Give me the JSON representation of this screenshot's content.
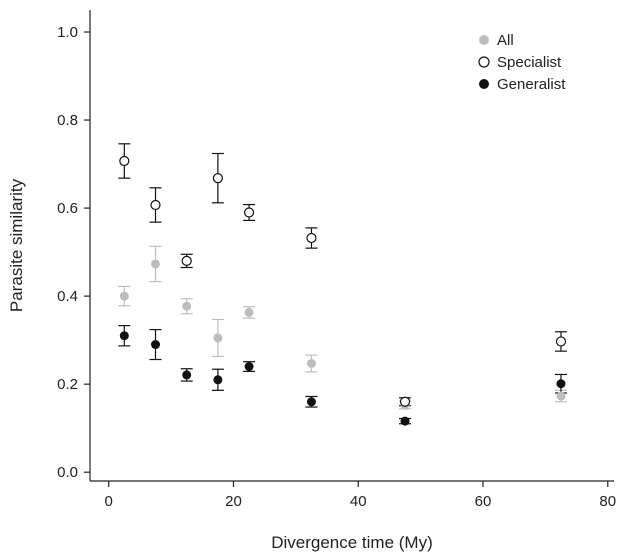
{
  "chart_data": {
    "type": "scatter",
    "title": "",
    "xlabel": "Divergence time (My)",
    "ylabel": "Parasite similarity",
    "xlim": [
      -3,
      81
    ],
    "ylim": [
      -0.02,
      1.05
    ],
    "xticks": [
      0,
      20,
      40,
      60,
      80
    ],
    "yticks": [
      0.0,
      0.2,
      0.4,
      0.6,
      0.8,
      1.0
    ],
    "xtick_labels": [
      "0",
      "20",
      "40",
      "60",
      "80"
    ],
    "ytick_labels": [
      "0.0",
      "0.2",
      "0.4",
      "0.6",
      "0.8",
      "1.0"
    ],
    "grid": false,
    "legend_position": "top-right",
    "series": [
      {
        "name": "All",
        "marker": "filled",
        "color": "#bdbdbd",
        "points": [
          {
            "x": 2.5,
            "y": 0.4,
            "lo": 0.378,
            "hi": 0.422
          },
          {
            "x": 7.5,
            "y": 0.473,
            "lo": 0.433,
            "hi": 0.513
          },
          {
            "x": 12.5,
            "y": 0.377,
            "lo": 0.36,
            "hi": 0.394
          },
          {
            "x": 17.5,
            "y": 0.305,
            "lo": 0.263,
            "hi": 0.347
          },
          {
            "x": 22.5,
            "y": 0.363,
            "lo": 0.35,
            "hi": 0.376
          },
          {
            "x": 32.5,
            "y": 0.247,
            "lo": 0.228,
            "hi": 0.266
          },
          {
            "x": 47.5,
            "y": 0.153,
            "lo": 0.144,
            "hi": 0.162
          },
          {
            "x": 72.5,
            "y": 0.173,
            "lo": 0.16,
            "hi": 0.186
          }
        ]
      },
      {
        "name": "Specialist",
        "marker": "open",
        "color": "#111111",
        "points": [
          {
            "x": 2.5,
            "y": 0.707,
            "lo": 0.668,
            "hi": 0.746
          },
          {
            "x": 7.5,
            "y": 0.607,
            "lo": 0.568,
            "hi": 0.646
          },
          {
            "x": 12.5,
            "y": 0.48,
            "lo": 0.465,
            "hi": 0.495
          },
          {
            "x": 17.5,
            "y": 0.668,
            "lo": 0.612,
            "hi": 0.724
          },
          {
            "x": 22.5,
            "y": 0.59,
            "lo": 0.572,
            "hi": 0.608
          },
          {
            "x": 32.5,
            "y": 0.532,
            "lo": 0.509,
            "hi": 0.555
          },
          {
            "x": 47.5,
            "y": 0.16,
            "lo": 0.151,
            "hi": 0.169
          },
          {
            "x": 72.5,
            "y": 0.297,
            "lo": 0.275,
            "hi": 0.319
          }
        ]
      },
      {
        "name": "Generalist",
        "marker": "filled",
        "color": "#111111",
        "points": [
          {
            "x": 2.5,
            "y": 0.31,
            "lo": 0.287,
            "hi": 0.333
          },
          {
            "x": 7.5,
            "y": 0.29,
            "lo": 0.256,
            "hi": 0.324
          },
          {
            "x": 12.5,
            "y": 0.221,
            "lo": 0.207,
            "hi": 0.235
          },
          {
            "x": 17.5,
            "y": 0.21,
            "lo": 0.186,
            "hi": 0.234
          },
          {
            "x": 22.5,
            "y": 0.24,
            "lo": 0.229,
            "hi": 0.251
          },
          {
            "x": 32.5,
            "y": 0.16,
            "lo": 0.148,
            "hi": 0.172
          },
          {
            "x": 47.5,
            "y": 0.116,
            "lo": 0.11,
            "hi": 0.122
          },
          {
            "x": 72.5,
            "y": 0.201,
            "lo": 0.18,
            "hi": 0.222
          }
        ]
      }
    ]
  }
}
